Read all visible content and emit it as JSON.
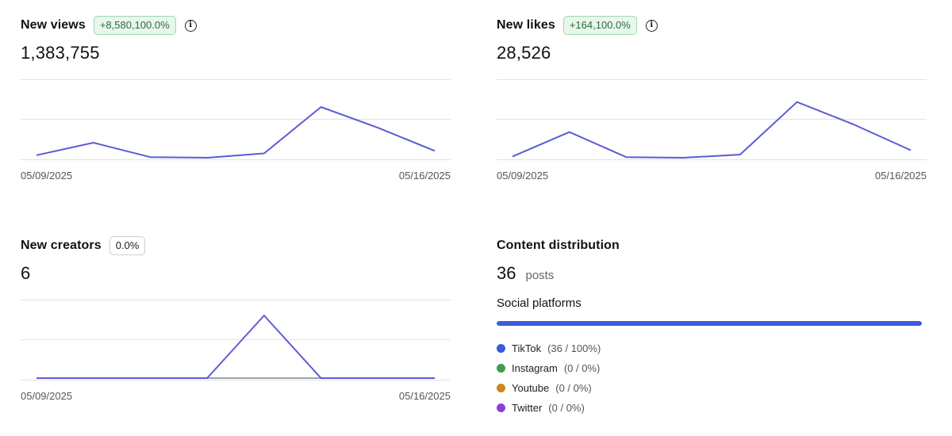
{
  "new_views": {
    "title": "New views",
    "badge": "+8,580,100.0%",
    "value": "1,383,755",
    "start_date": "05/09/2025",
    "end_date": "05/16/2025"
  },
  "new_likes": {
    "title": "New likes",
    "badge": "+164,100.0%",
    "value": "28,526",
    "start_date": "05/09/2025",
    "end_date": "05/16/2025"
  },
  "new_creators": {
    "title": "New creators",
    "badge": "0.0%",
    "value": "6",
    "start_date": "05/09/2025",
    "end_date": "05/16/2025"
  },
  "content_distribution": {
    "title": "Content distribution",
    "count": "36",
    "unit": "posts",
    "section_title": "Social platforms",
    "bar_fraction": 1.0,
    "bar_color": "#3b5bdb",
    "platforms": [
      {
        "name": "TikTok",
        "value": "(36 / 100%)",
        "color": "#3b5bdb"
      },
      {
        "name": "Instagram",
        "value": "(0 / 0%)",
        "color": "#3f9e4f"
      },
      {
        "name": "Youtube",
        "value": "(0 / 0%)",
        "color": "#c88a1e"
      },
      {
        "name": "Twitter",
        "value": "(0 / 0%)",
        "color": "#8b3fd9"
      }
    ]
  },
  "colors": {
    "line": "#5b5bd6",
    "grid": "#e3e3e3",
    "baseline": "#9aa3ad"
  },
  "chart_data": [
    {
      "type": "line",
      "name": "new_views",
      "x": [
        "05/09/2025",
        "05/10/2025",
        "05/11/2025",
        "05/12/2025",
        "05/13/2025",
        "05/14/2025",
        "05/15/2025",
        "05/16/2025"
      ],
      "values": [
        0.04,
        0.24,
        0.01,
        0.0,
        0.07,
        0.81,
        0.48,
        0.11
      ],
      "ylim": [
        0,
        1
      ]
    },
    {
      "type": "line",
      "name": "new_likes",
      "x": [
        "05/09/2025",
        "05/10/2025",
        "05/11/2025",
        "05/12/2025",
        "05/13/2025",
        "05/14/2025",
        "05/15/2025",
        "05/16/2025"
      ],
      "values": [
        0.02,
        0.41,
        0.01,
        0.0,
        0.05,
        0.89,
        0.53,
        0.12
      ],
      "ylim": [
        0,
        1
      ]
    },
    {
      "type": "line",
      "name": "new_creators",
      "x": [
        "05/09/2025",
        "05/10/2025",
        "05/11/2025",
        "05/12/2025",
        "05/13/2025",
        "05/14/2025",
        "05/15/2025",
        "05/16/2025"
      ],
      "values": [
        0,
        0,
        0,
        0,
        1,
        0,
        0,
        0
      ],
      "ylim": [
        0,
        1
      ]
    }
  ]
}
